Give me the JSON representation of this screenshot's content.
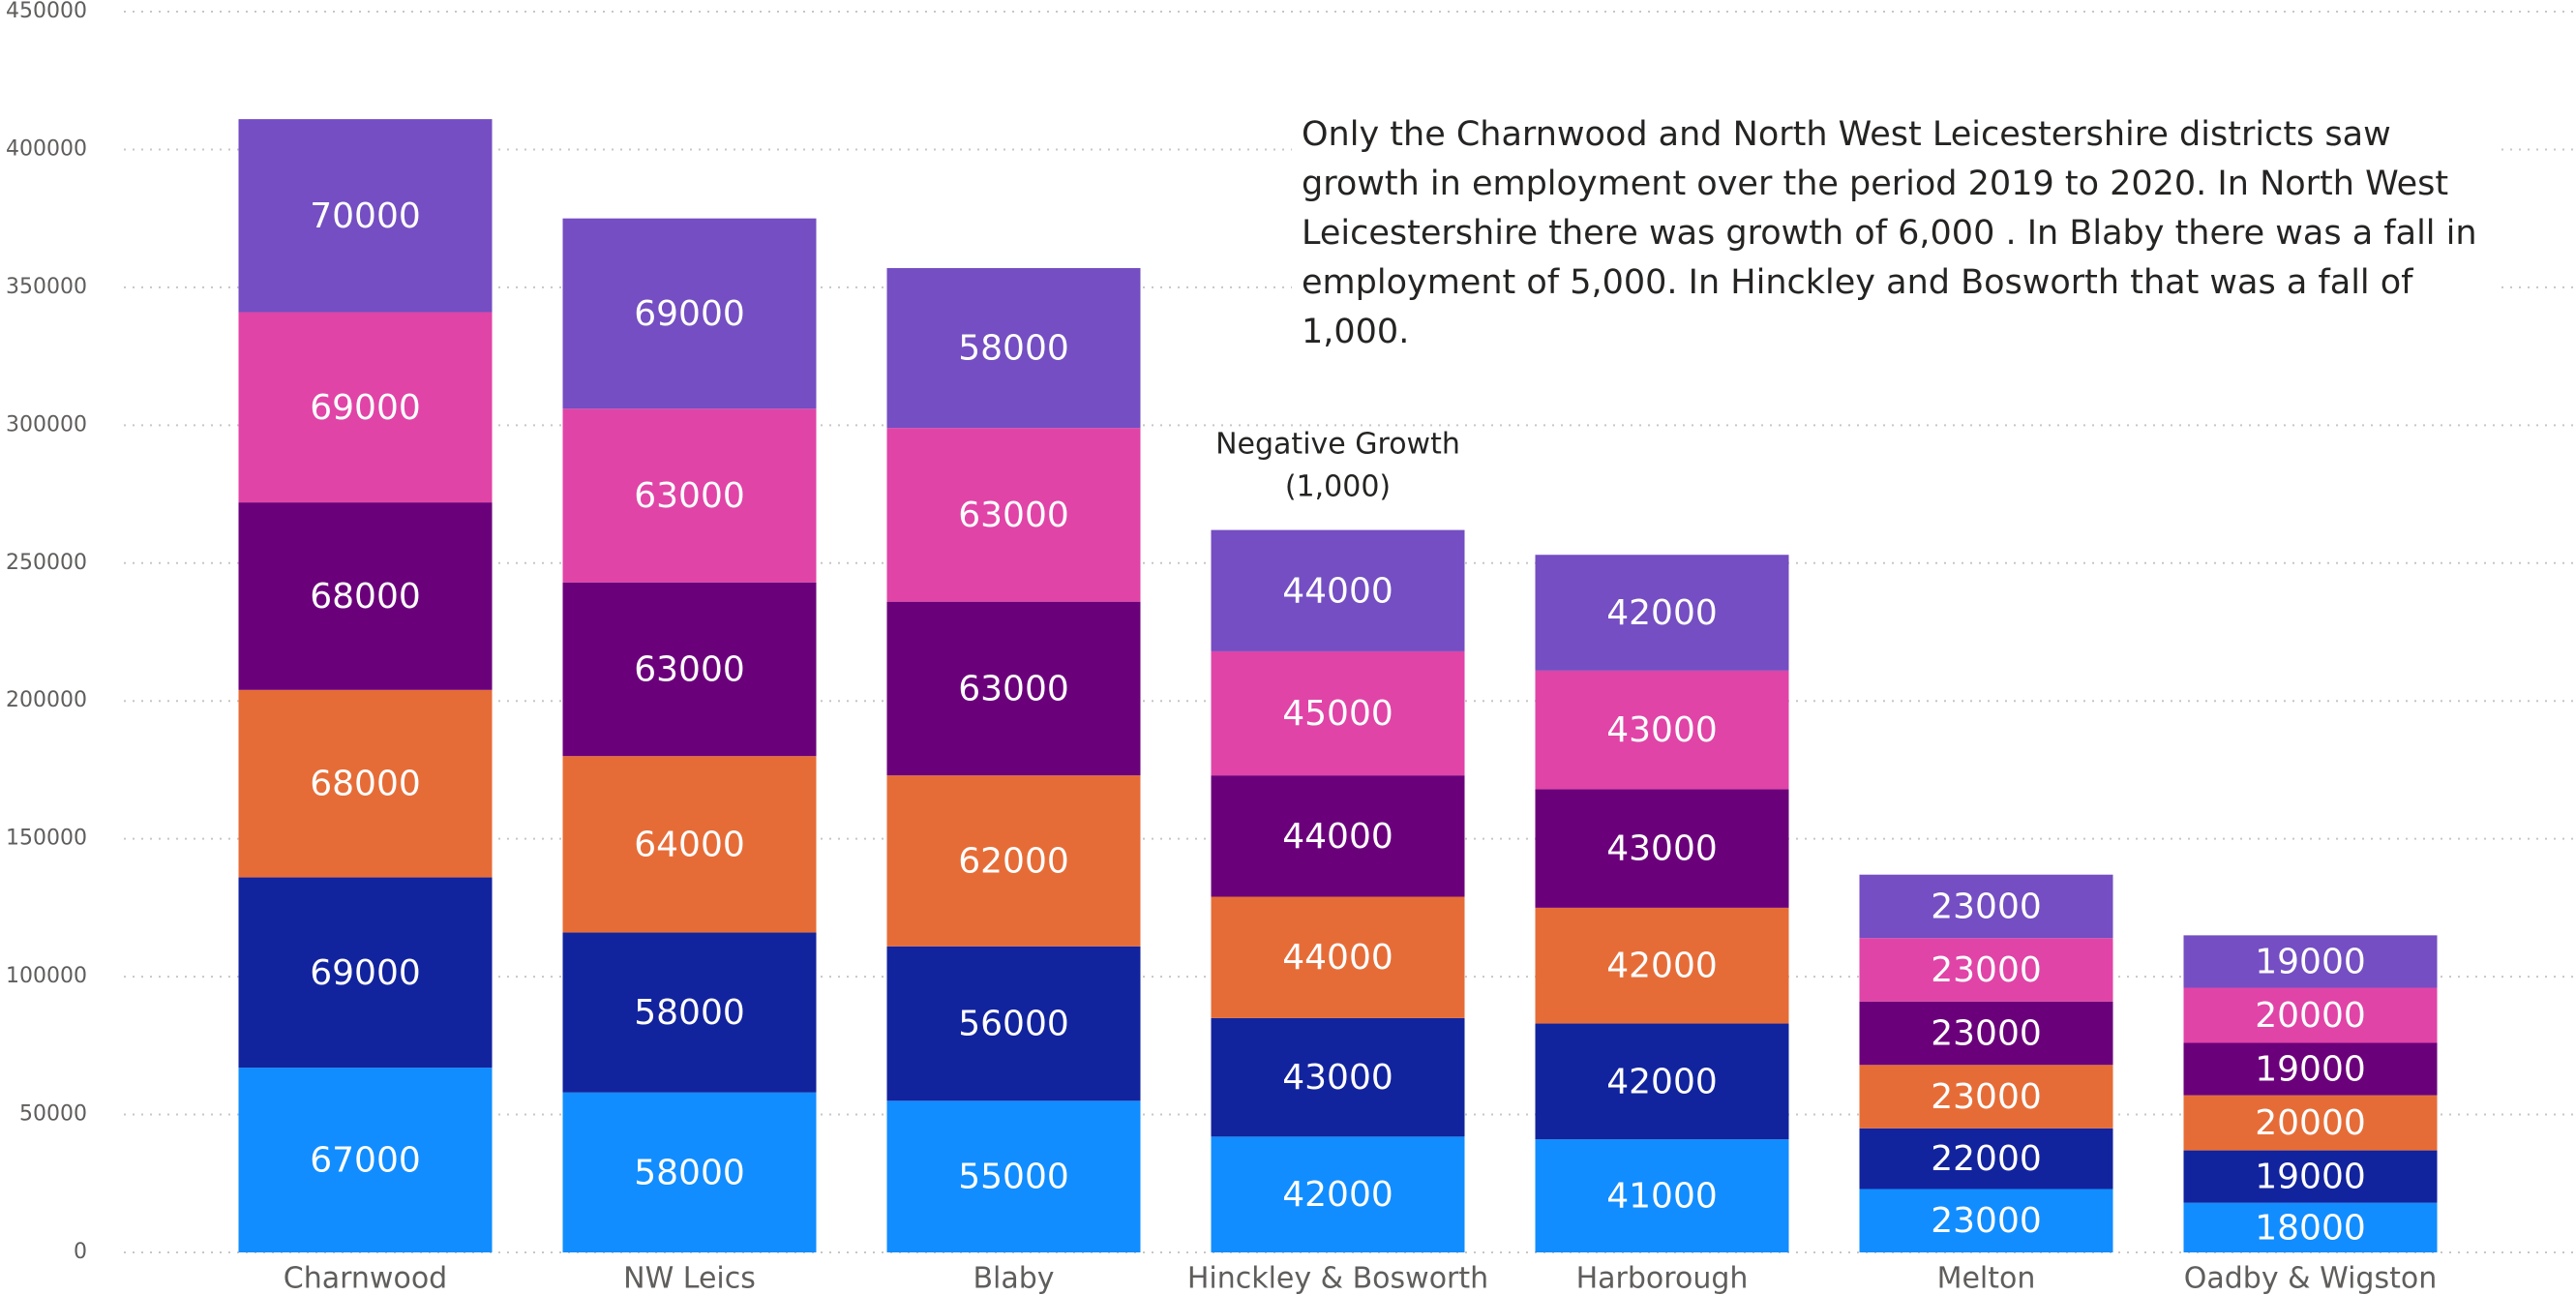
{
  "chart_data": {
    "type": "stacked_bar",
    "categories": [
      "Charnwood",
      "NW Leics",
      "Blaby",
      "Hinckley & Bosworth",
      "Harborough",
      "Melton",
      "Oadby & Wigston"
    ],
    "series": [
      {
        "color": "#118DFF",
        "values": [
          67000,
          58000,
          55000,
          42000,
          41000,
          23000,
          18000
        ]
      },
      {
        "color": "#12239E",
        "values": [
          69000,
          58000,
          56000,
          43000,
          42000,
          22000,
          19000
        ]
      },
      {
        "color": "#E66C37",
        "values": [
          68000,
          64000,
          62000,
          44000,
          42000,
          23000,
          20000
        ]
      },
      {
        "color": "#6B007B",
        "values": [
          68000,
          63000,
          63000,
          44000,
          43000,
          23000,
          19000
        ]
      },
      {
        "color": "#E044A7",
        "values": [
          69000,
          63000,
          63000,
          45000,
          43000,
          23000,
          20000
        ]
      },
      {
        "color": "#744EC2",
        "values": [
          70000,
          69000,
          58000,
          44000,
          42000,
          23000,
          19000
        ]
      }
    ],
    "ylim": [
      0,
      450000
    ],
    "yticks": [
      0,
      50000,
      100000,
      150000,
      200000,
      250000,
      300000,
      350000,
      400000,
      450000
    ],
    "grid": true,
    "annotations": [
      {
        "text": "Only the Charnwood and North West Leicestershire districts saw growth in employment over the period 2019 to 2020.  In North West Leicestershire there was growth of 6,000 .  In Blaby there was a fall in employment of 5,000.  In Hinckley and Bosworth that was a fall of 1,000."
      },
      {
        "lines": [
          "Negative Growth",
          "(1,000)"
        ]
      }
    ]
  }
}
